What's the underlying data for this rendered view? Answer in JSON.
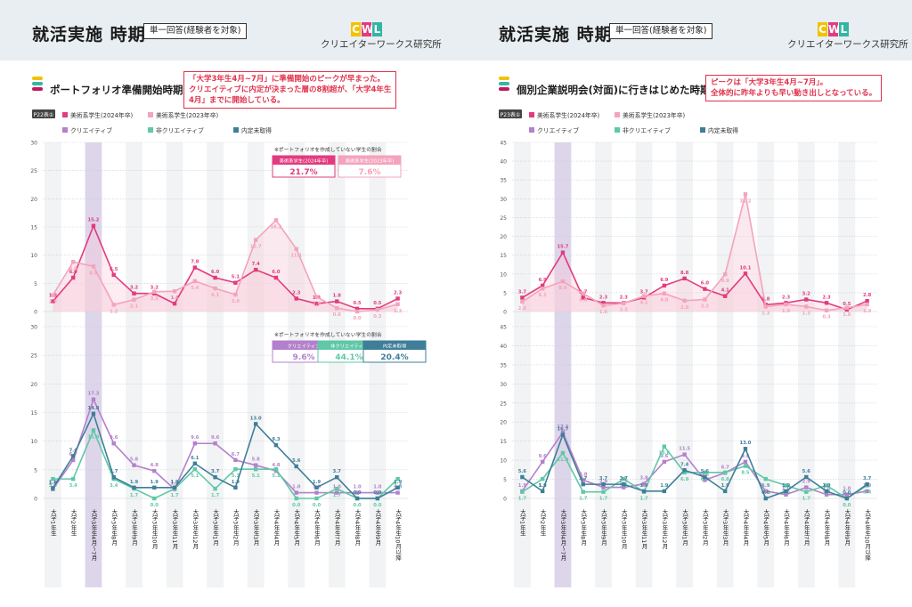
{
  "months": [
    "大学1年生",
    "大学2年生",
    "大学3年生4月〜7月",
    "大学3年生8月",
    "大学3年生9月",
    "大学3年生10月",
    "大学3年生11月",
    "大学3年生12月",
    "大学3年生1月",
    "大学3年生2月",
    "大学3年生3月",
    "大学4年生4月",
    "大学4年生5月",
    "大学4年生6月",
    "大学4年生7月",
    "大学4年生8月",
    "大学4年生9月",
    "大学4年生10月以降"
  ],
  "logo": {
    "letters": [
      "C",
      "W",
      "L"
    ],
    "colors": [
      "#f2c200",
      "#e23b7e",
      "#35b5a4"
    ],
    "text": "クリエイターワークス研究所"
  },
  "colors": {
    "art2024": "#e23b7e",
    "art2023": "#f4a3bc",
    "creative": "#b480cc",
    "noncreative": "#5fc8a6",
    "noofffer": "#3f7e99",
    "bar_yellow": "#f2c200",
    "bar_teal": "#35b5a4",
    "bar_magenta": "#c2185b"
  },
  "left": {
    "header": "就活実施 時期",
    "tag": "単一回答(経験者を対象)",
    "section_title": "ポートフォリオ準備開始時期",
    "callout": [
      "「大学3年生4月~7月」に準備開始のピークが早まった。",
      "クリエイティブに内定が決まった層の8割超が、「大学4年生",
      "4月」までに開始している。"
    ],
    "ref": "P22表①",
    "legend_top": [
      "美術系学生(2024年卒)",
      "美術系学生(2023年卒)"
    ],
    "legend_bottom": [
      "クリエイティブ",
      "非クリエイティブ",
      "内定未取得"
    ],
    "note": "※ポートフォリオを作成していない学生の割合",
    "top_badges": [
      {
        "label": "美術系学生(2024年卒)",
        "value": "21.7%"
      },
      {
        "label": "美術系学生(2023年卒)",
        "value": "7.6%"
      }
    ],
    "bottom_badges": [
      {
        "label": "クリエイティブ",
        "value": "9.6%"
      },
      {
        "label": "非クリエイティブ",
        "value": "44.1%"
      },
      {
        "label": "内定未取得",
        "value": "20.4%"
      }
    ]
  },
  "right": {
    "header": "就活実施 時期",
    "tag": "単一回答(経験者を対象)",
    "section_title": "個別企業説明会(対面)に行きはじめた時期",
    "callout": [
      "ピークは「大学3年生4月~7月」。",
      "全体的に昨年よりも早い動き出しとなっている。"
    ],
    "ref": "P23表①",
    "legend_top": [
      "美術系学生(2024年卒)",
      "美術系学生(2023年卒)"
    ],
    "legend_bottom": [
      "クリエイティブ",
      "非クリエイティブ",
      "内定未取得"
    ]
  },
  "chart_data": [
    {
      "type": "line",
      "panel": "left-top",
      "categories_ref": "months",
      "ylim": [
        0,
        30
      ],
      "yticks": [
        0,
        5,
        10,
        15,
        20,
        25,
        30
      ],
      "series": [
        {
          "name": "美術系学生(2024年卒)",
          "values": [
            1.8,
            6.0,
            15.2,
            6.5,
            3.2,
            3.2,
            1.4,
            7.8,
            6.0,
            5.1,
            7.4,
            6.0,
            2.3,
            1.4,
            1.8,
            0.5,
            0.5,
            2.3
          ]
        },
        {
          "name": "美術系学生(2023年卒)",
          "values": [
            2.9,
            8.8,
            8.0,
            1.2,
            2.1,
            3.5,
            3.6,
            5.4,
            4.1,
            3.0,
            12.7,
            16.2,
            11.1,
            2.6,
            0.6,
            0.0,
            0.3,
            1.3
          ]
        }
      ]
    },
    {
      "type": "line",
      "panel": "left-bottom",
      "categories_ref": "months",
      "ylim": [
        0,
        30
      ],
      "yticks": [
        0,
        5,
        10,
        15,
        20,
        25,
        30
      ],
      "series": [
        {
          "name": "クリエイティブ",
          "values": [
            1.6,
            6.7,
            17.3,
            9.6,
            5.8,
            4.8,
            1.6,
            9.6,
            9.6,
            6.7,
            5.8,
            4.8,
            1.0,
            1.0,
            1.0,
            1.0,
            1.0,
            1.0
          ]
        },
        {
          "name": "非クリエイティブ",
          "values": [
            3.4,
            3.4,
            11.9,
            3.4,
            1.7,
            0.0,
            1.7,
            5.1,
            1.7,
            5.1,
            5.1,
            5.1,
            0.0,
            0.0,
            1.7,
            0.0,
            0.0,
            3.4
          ]
        },
        {
          "name": "内定未取得",
          "values": [
            1.8,
            7.4,
            14.8,
            3.7,
            1.9,
            1.9,
            1.9,
            6.1,
            3.7,
            1.9,
            13.0,
            9.3,
            5.6,
            1.9,
            3.7,
            0.0,
            0.0,
            1.9
          ]
        }
      ]
    },
    {
      "type": "line",
      "panel": "right-top",
      "categories_ref": "months",
      "ylim": [
        0,
        45
      ],
      "yticks": [
        0,
        5,
        10,
        15,
        20,
        25,
        30,
        35,
        40,
        45
      ],
      "series": [
        {
          "name": "美術系学生(2024年卒)",
          "values": [
            3.7,
            6.9,
            15.7,
            3.7,
            2.3,
            2.3,
            3.7,
            6.9,
            8.8,
            6.0,
            4.1,
            10.1,
            1.8,
            2.3,
            3.2,
            2.3,
            0.5,
            2.8
          ]
        },
        {
          "name": "美術系学生(2023年卒)",
          "values": [
            2.6,
            6.1,
            8.0,
            4.8,
            1.6,
            2.2,
            4.1,
            4.8,
            2.9,
            3.2,
            9.9,
            31.2,
            1.3,
            1.9,
            1.3,
            0.3,
            1.0,
            1.9
          ]
        }
      ]
    },
    {
      "type": "line",
      "panel": "right-bottom",
      "categories_ref": "months",
      "ylim": [
        0,
        45
      ],
      "yticks": [
        0,
        5,
        10,
        15,
        20,
        25,
        30,
        35,
        40,
        45
      ],
      "series": [
        {
          "name": "クリエイティブ",
          "values": [
            1.9,
            9.6,
            17.3,
            4.8,
            2.9,
            2.9,
            3.8,
            9.6,
            11.5,
            4.8,
            6.7,
            9.6,
            1.9,
            1.0,
            2.9,
            1.0,
            1.0,
            1.9
          ]
        },
        {
          "name": "非クリエイティブ",
          "values": [
            1.7,
            5.1,
            11.9,
            1.7,
            1.7,
            5.1,
            1.7,
            13.6,
            6.8,
            6.8,
            6.8,
            8.5,
            5.1,
            3.4,
            1.7,
            3.4,
            0.0,
            3.4
          ]
        },
        {
          "name": "内定未取得",
          "values": [
            5.6,
            1.9,
            16.7,
            3.7,
            3.7,
            3.7,
            1.9,
            1.9,
            7.4,
            5.6,
            1.9,
            13.0,
            0.0,
            1.9,
            5.6,
            1.9,
            0.0,
            3.7
          ]
        }
      ]
    }
  ]
}
